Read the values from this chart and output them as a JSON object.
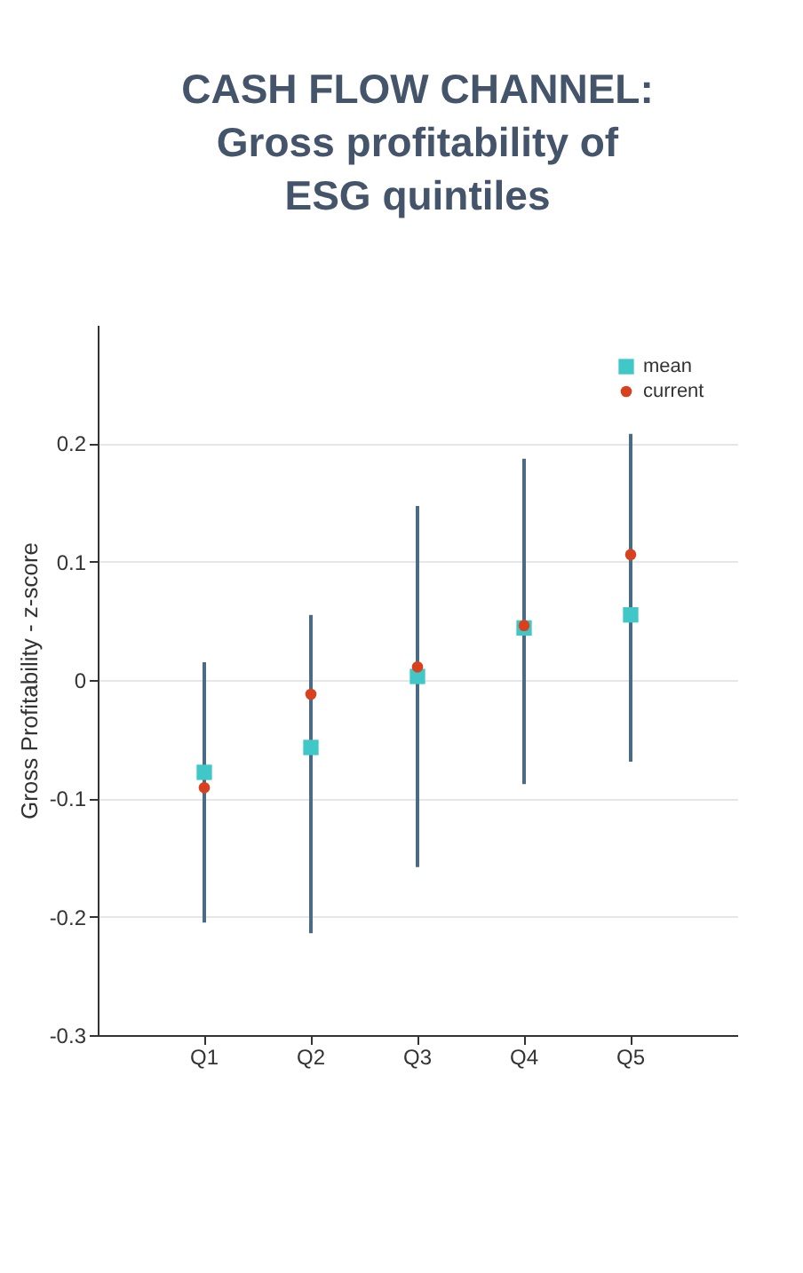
{
  "chart_data": {
    "type": "scatter",
    "title": [
      "CASH FLOW CHANNEL:",
      "Gross profitability of",
      "ESG quintiles"
    ],
    "ylabel": "Gross Profitability - z-score",
    "categories": [
      "Q1",
      "Q2",
      "Q3",
      "Q4",
      "Q5"
    ],
    "series": [
      {
        "name": "mean",
        "color": "#40c8c8",
        "marker": "square",
        "values": [
          -0.078,
          -0.057,
          0.003,
          0.044,
          0.055
        ],
        "errors": [
          [
            -0.205,
            0.015
          ],
          [
            -0.214,
            0.055
          ],
          [
            -0.158,
            0.147
          ],
          [
            -0.088,
            0.187
          ],
          [
            -0.069,
            0.208
          ]
        ]
      },
      {
        "name": "current",
        "color": "#d9411e",
        "marker": "circle",
        "values": [
          -0.091,
          -0.012,
          0.011,
          0.046,
          0.106
        ]
      }
    ],
    "ylim": [
      -0.3,
      0.3
    ],
    "yticks": [
      -0.3,
      -0.2,
      -0.1,
      0,
      0.1,
      0.2
    ],
    "grid": "y",
    "legend": "top right"
  }
}
